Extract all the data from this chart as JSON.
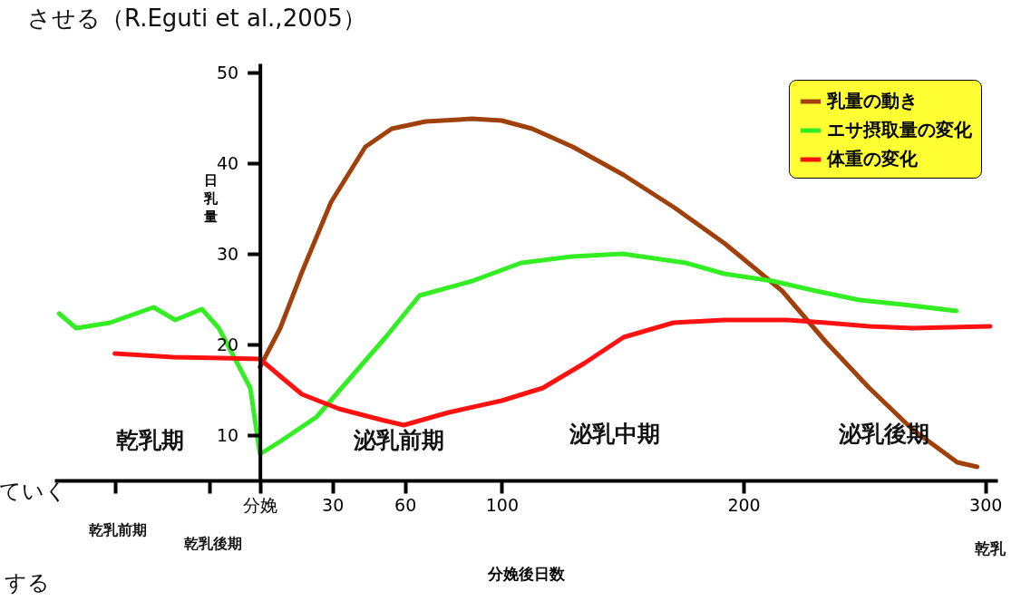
{
  "chart_data": {
    "type": "line",
    "title": "させる（R.Eguti et al.,2005）",
    "xlabel": "分娩後日数",
    "ylabel": "日乳量",
    "xlim": [
      -85,
      305
    ],
    "ylim": [
      5,
      51
    ],
    "xticks": [
      {
        "value": -60,
        "label": null
      },
      {
        "value": -21,
        "label": null
      },
      {
        "value": 0,
        "label": "分娩"
      },
      30,
      60,
      100,
      200,
      300
    ],
    "yticks": [
      10,
      20,
      30,
      40,
      50
    ],
    "grid": false,
    "legend": "top right",
    "line_style": "solid",
    "marker": "none",
    "series": [
      {
        "name": "乳量の動き",
        "color": "#a0400a",
        "x": [
          0,
          8.4,
          17.4,
          29.4,
          43.6,
          54.5,
          68.6,
          87.8,
          100,
          112.6,
          129.4,
          150.4,
          171.4,
          192.4,
          216,
          234,
          252,
          270,
          288.4,
          296.6
        ],
        "values": [
          17.5,
          21.8,
          28.0,
          35.7,
          41.8,
          43.8,
          44.6,
          44.9,
          44.7,
          43.8,
          41.8,
          38.7,
          35.1,
          31.1,
          25.9,
          20.3,
          15.2,
          10.6,
          7.0,
          6.5
        ]
      },
      {
        "name": "エサ摂取量の変化",
        "color": "#33ee22",
        "x": [
          -83,
          -76,
          -62,
          -44,
          -35,
          -24,
          -17,
          -4,
          0,
          8.4,
          23.4,
          38,
          52,
          66,
          87.8,
          108,
          129,
          150,
          176,
          192,
          212,
          230,
          248,
          266,
          288
        ],
        "values": [
          23.4,
          21.8,
          22.4,
          24.1,
          22.7,
          23.9,
          21.8,
          15.2,
          7.9,
          9.3,
          12.0,
          16.5,
          20.8,
          25.4,
          27.0,
          29.0,
          29.7,
          30.0,
          29.0,
          27.8,
          27.0,
          25.9,
          24.9,
          24.4,
          23.7
        ]
      },
      {
        "name": "体重の変化",
        "color": "#ff1111",
        "x": [
          -60,
          -36,
          0,
          8.4,
          17.4,
          32.7,
          50,
          59.5,
          78,
          100,
          117,
          134,
          150.4,
          171,
          192,
          218,
          234,
          252,
          270,
          302
        ],
        "values": [
          19.0,
          18.6,
          18.4,
          16.5,
          14.5,
          12.9,
          11.7,
          11.1,
          12.5,
          13.8,
          15.2,
          17.9,
          20.8,
          22.4,
          22.7,
          22.7,
          22.4,
          22.0,
          21.8,
          22.0
        ]
      }
    ],
    "annotations": [
      "乾乳期",
      "泌乳前期",
      "泌乳中期",
      "泌乳後期",
      "乾乳前期",
      "乾乳後期",
      "乾乳",
      "ていく",
      "する"
    ]
  }
}
